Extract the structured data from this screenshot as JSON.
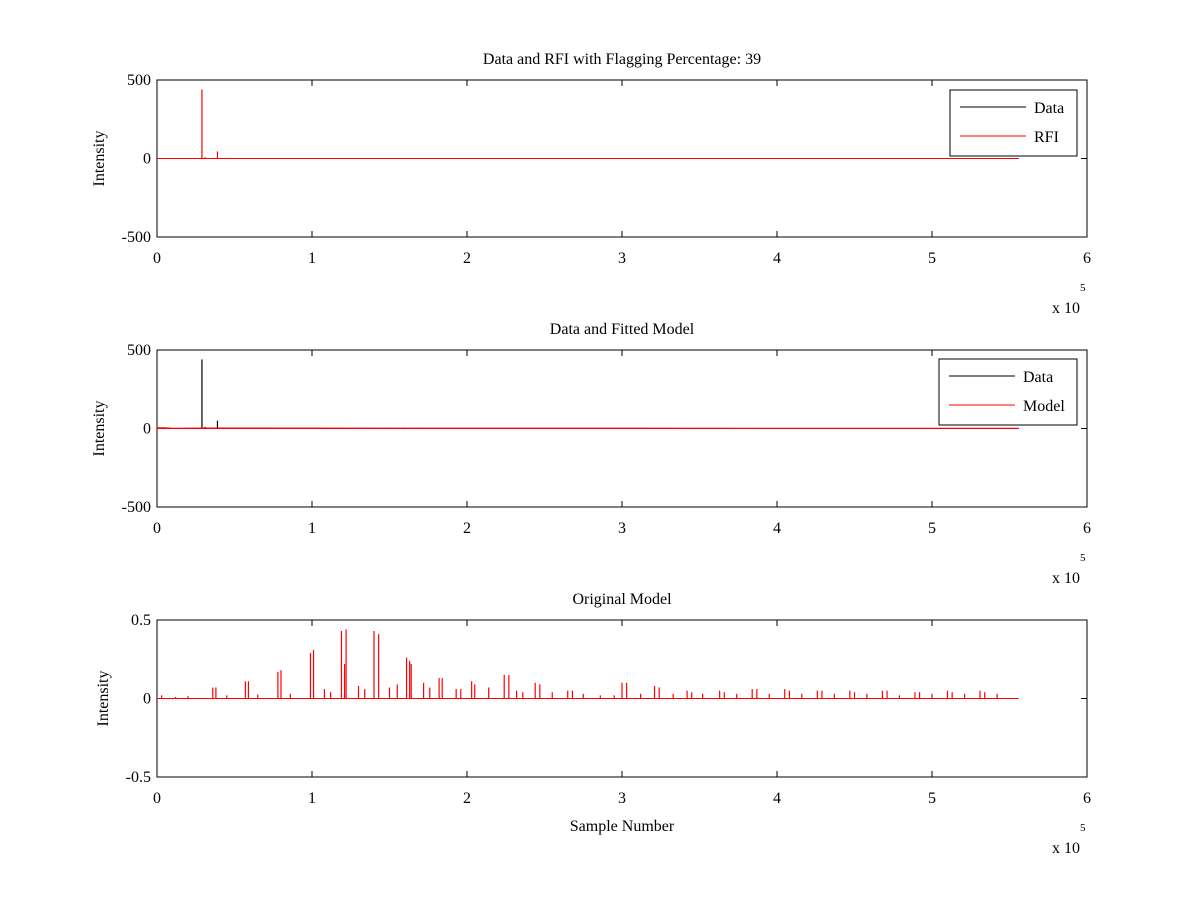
{
  "chart_data": [
    {
      "type": "line",
      "title": "Data and RFI with Flagging Percentage: 39",
      "xlabel": "",
      "ylabel": "Intensity",
      "xlim": [
        0,
        600000
      ],
      "ylim": [
        -500,
        500
      ],
      "x_ticks": [
        "0",
        "1",
        "2",
        "3",
        "4",
        "5",
        "6"
      ],
      "y_ticks": [
        "-500",
        "0",
        "500"
      ],
      "x_multiplier": "x 10",
      "x_multiplier_exp": "5",
      "legend_position": "top-right",
      "legend": [
        "Data",
        "RFI"
      ],
      "colors": {
        "Data": "#000000",
        "RFI": "#ff0000"
      },
      "x_end": 556000,
      "series": [
        {
          "name": "Data",
          "points": [
            [
              0,
              0
            ],
            [
              556000,
              0
            ]
          ]
        },
        {
          "name": "RFI",
          "spikes": [
            [
              29000,
              440
            ],
            [
              39000,
              45
            ],
            [
              31000,
              8
            ],
            [
              45000,
              4
            ]
          ]
        }
      ]
    },
    {
      "type": "line",
      "title": "Data and Fitted Model",
      "xlabel": "",
      "ylabel": "Intensity",
      "xlim": [
        0,
        600000
      ],
      "ylim": [
        -500,
        500
      ],
      "x_ticks": [
        "0",
        "1",
        "2",
        "3",
        "4",
        "5",
        "6"
      ],
      "y_ticks": [
        "-500",
        "0",
        "500"
      ],
      "x_multiplier": "x 10",
      "x_multiplier_exp": "5",
      "legend_position": "top-right",
      "legend": [
        "Data",
        "Model"
      ],
      "colors": {
        "Data": "#000000",
        "Model": "#ff0000"
      },
      "x_end": 556000,
      "series": [
        {
          "name": "Data",
          "spikes": [
            [
              29000,
              440
            ],
            [
              39000,
              50
            ],
            [
              31000,
              10
            ],
            [
              8000,
              6
            ],
            [
              45000,
              6
            ],
            [
              70000,
              5
            ],
            [
              88000,
              6
            ],
            [
              95000,
              5
            ],
            [
              105000,
              6
            ],
            [
              112000,
              5
            ],
            [
              140000,
              6
            ],
            [
              150000,
              5
            ],
            [
              160000,
              6
            ],
            [
              170000,
              5
            ],
            [
              197000,
              4
            ],
            [
              220000,
              3
            ],
            [
              316000,
              3
            ],
            [
              422000,
              3
            ]
          ]
        },
        {
          "name": "Model",
          "points": [
            [
              0,
              5
            ],
            [
              5000,
              5
            ],
            [
              10000,
              2
            ],
            [
              30000,
              3
            ],
            [
              556000,
              1
            ]
          ]
        }
      ]
    },
    {
      "type": "line",
      "title": "Original Model",
      "xlabel": "Sample Number",
      "ylabel": "Intensity",
      "xlim": [
        0,
        600000
      ],
      "ylim": [
        -0.5,
        0.5
      ],
      "x_ticks": [
        "0",
        "1",
        "2",
        "3",
        "4",
        "5",
        "6"
      ],
      "y_ticks": [
        "-0.5",
        "0",
        "0.5"
      ],
      "x_multiplier": "x 10",
      "x_multiplier_exp": "5",
      "legend": [],
      "colors": {
        "Model": "#ff0000"
      },
      "x_end": 556000,
      "series": [
        {
          "name": "",
          "spikes": [
            [
              3000,
              0.02
            ],
            [
              12000,
              0.01
            ],
            [
              36000,
              0.07
            ],
            [
              38000,
              0.07
            ],
            [
              57000,
              0.11
            ],
            [
              59000,
              0.11
            ],
            [
              78000,
              0.17
            ],
            [
              80000,
              0.18
            ],
            [
              99000,
              0.29
            ],
            [
              101000,
              0.31
            ],
            [
              119000,
              0.43
            ],
            [
              121000,
              0.22
            ],
            [
              122000,
              0.44
            ],
            [
              140000,
              0.43
            ],
            [
              143000,
              0.41
            ],
            [
              161000,
              0.26
            ],
            [
              163000,
              0.24
            ],
            [
              164000,
              0.22
            ],
            [
              182000,
              0.13
            ],
            [
              184000,
              0.13
            ],
            [
              203000,
              0.11
            ],
            [
              205000,
              0.09
            ],
            [
              224000,
              0.15
            ],
            [
              227000,
              0.15
            ],
            [
              244000,
              0.1
            ],
            [
              247000,
              0.09
            ],
            [
              265000,
              0.05
            ],
            [
              268000,
              0.05
            ],
            [
              286000,
              0.02
            ],
            [
              300000,
              0.1
            ],
            [
              303000,
              0.1
            ],
            [
              321000,
              0.08
            ],
            [
              324000,
              0.07
            ],
            [
              342000,
              0.05
            ],
            [
              345000,
              0.04
            ],
            [
              363000,
              0.05
            ],
            [
              366000,
              0.04
            ],
            [
              384000,
              0.06
            ],
            [
              387000,
              0.06
            ],
            [
              405000,
              0.06
            ],
            [
              408000,
              0.05
            ],
            [
              426000,
              0.05
            ],
            [
              429000,
              0.05
            ],
            [
              447000,
              0.05
            ],
            [
              450000,
              0.04
            ],
            [
              468000,
              0.05
            ],
            [
              471000,
              0.05
            ],
            [
              489000,
              0.04
            ],
            [
              492000,
              0.04
            ],
            [
              510000,
              0.05
            ],
            [
              513000,
              0.04
            ],
            [
              531000,
              0.05
            ],
            [
              534000,
              0.04
            ],
            [
              20000,
              0.015
            ],
            [
              45000,
              0.02
            ],
            [
              65000,
              0.025
            ],
            [
              86000,
              0.03
            ],
            [
              108000,
              0.06
            ],
            [
              112000,
              0.04
            ],
            [
              130000,
              0.08
            ],
            [
              134000,
              0.06
            ],
            [
              150000,
              0.07
            ],
            [
              155000,
              0.09
            ],
            [
              172000,
              0.1
            ],
            [
              176000,
              0.07
            ],
            [
              193000,
              0.06
            ],
            [
              196000,
              0.06
            ],
            [
              214000,
              0.07
            ],
            [
              232000,
              0.05
            ],
            [
              236000,
              0.04
            ],
            [
              255000,
              0.04
            ],
            [
              275000,
              0.03
            ],
            [
              295000,
              0.02
            ],
            [
              312000,
              0.03
            ],
            [
              333000,
              0.03
            ],
            [
              352000,
              0.03
            ],
            [
              374000,
              0.03
            ],
            [
              395000,
              0.03
            ],
            [
              416000,
              0.03
            ],
            [
              437000,
              0.03
            ],
            [
              458000,
              0.03
            ],
            [
              479000,
              0.02
            ],
            [
              500000,
              0.03
            ],
            [
              521000,
              0.03
            ],
            [
              542000,
              0.03
            ]
          ]
        }
      ]
    }
  ]
}
